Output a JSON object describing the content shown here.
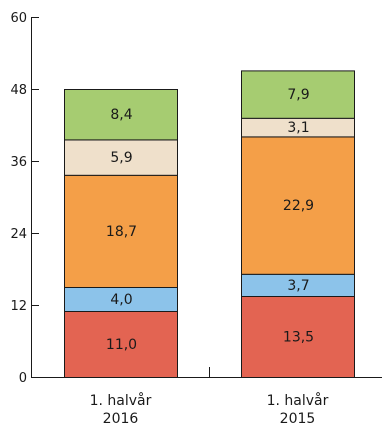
{
  "chart_data": {
    "type": "bar",
    "stacked": true,
    "title": "",
    "xlabel": "",
    "ylabel": "",
    "ylim": [
      0,
      60
    ],
    "yticks": [
      "0",
      "12",
      "24",
      "36",
      "48",
      "60"
    ],
    "legend": "none",
    "categories": [
      {
        "line1": "1. halvår",
        "line2": "2016"
      },
      {
        "line1": "1. halvår",
        "line2": "2015"
      }
    ],
    "series": [
      {
        "color": "#e36452",
        "values": [
          11.0,
          13.5
        ],
        "labels": [
          "11,0",
          "13,5"
        ]
      },
      {
        "color": "#8cc3ea",
        "values": [
          4.0,
          3.7
        ],
        "labels": [
          "4,0",
          "3,7"
        ]
      },
      {
        "color": "#f49f48",
        "values": [
          18.7,
          22.9
        ],
        "labels": [
          "18,7",
          "22,9"
        ]
      },
      {
        "color": "#efe0cb",
        "values": [
          5.9,
          3.1
        ],
        "labels": [
          "5,9",
          "3,1"
        ]
      },
      {
        "color": "#a6cc71",
        "values": [
          8.4,
          7.9
        ],
        "labels": [
          "8,4",
          "7,9"
        ]
      }
    ]
  }
}
